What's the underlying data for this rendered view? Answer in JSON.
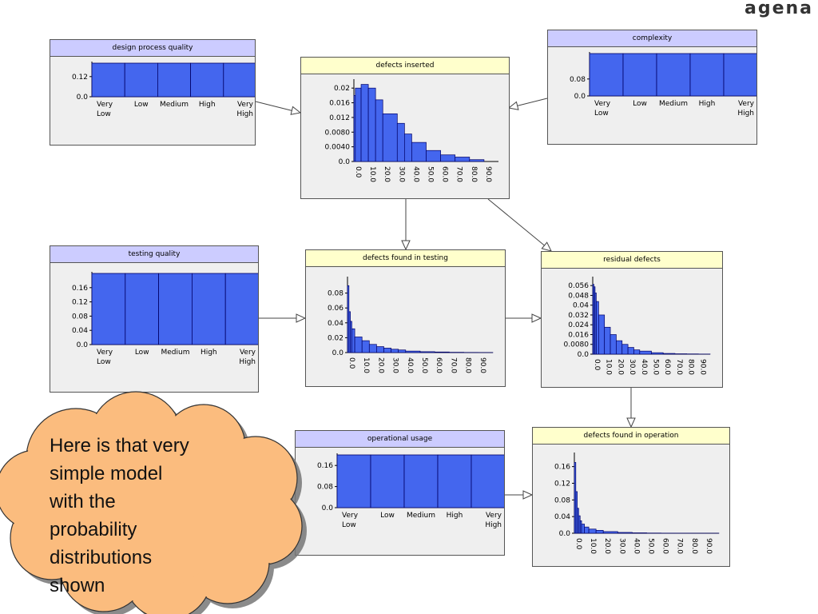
{
  "logo": {
    "text": "agena"
  },
  "note": {
    "lines": [
      "Here is that very",
      "simple model",
      "with the",
      "probability",
      "distributions",
      "shown"
    ],
    "fill": "#fbbc7e",
    "stroke": "#333333"
  },
  "colors": {
    "bar": "#4466ee",
    "bar_stroke": "#000066",
    "arrow": "#444444"
  },
  "nodes": [
    {
      "id": "design-process-quality",
      "title": "design process quality",
      "header": "purple",
      "chart_data": {
        "type": "bar",
        "categories": [
          "Very\nLow",
          "Low",
          "Medium",
          "High",
          "Very\nHigh"
        ],
        "values": [
          0.2,
          0.2,
          0.2,
          0.2,
          0.2
        ],
        "yticks": [
          "0.12",
          "0.0"
        ],
        "ylim": [
          0,
          0.2
        ]
      }
    },
    {
      "id": "complexity",
      "title": "complexity",
      "header": "purple",
      "chart_data": {
        "type": "bar",
        "categories": [
          "Very\nLow",
          "Low",
          "Medium",
          "High",
          "Very\nHigh"
        ],
        "values": [
          0.2,
          0.2,
          0.2,
          0.2,
          0.2
        ],
        "yticks": [
          "0.08",
          "0.0"
        ],
        "ylim": [
          0,
          0.2
        ]
      }
    },
    {
      "id": "testing-quality",
      "title": "testing quality",
      "header": "purple",
      "chart_data": {
        "type": "bar",
        "categories": [
          "Very\nLow",
          "Low",
          "Medium",
          "High",
          "Very\nHigh"
        ],
        "values": [
          0.2,
          0.2,
          0.2,
          0.2,
          0.2
        ],
        "yticks": [
          "0.16",
          "0.12",
          "0.08",
          "0.04",
          "0.0"
        ],
        "ylim": [
          0,
          0.2
        ]
      }
    },
    {
      "id": "operational-usage",
      "title": "operational usage",
      "header": "purple",
      "chart_data": {
        "type": "bar",
        "categories": [
          "Very\nLow",
          "Low",
          "Medium",
          "High",
          "Very\nHigh"
        ],
        "values": [
          0.2,
          0.2,
          0.2,
          0.2,
          0.2
        ],
        "yticks": [
          "0.16",
          "0.08",
          "0.0"
        ],
        "ylim": [
          0,
          0.2
        ]
      }
    },
    {
      "id": "defects-inserted",
      "title": "defects inserted",
      "header": "yellow",
      "chart_data": {
        "type": "histogram",
        "bins": [
          0,
          1,
          5,
          10,
          15,
          20,
          30,
          35,
          40,
          50,
          60,
          70,
          80,
          90,
          100
        ],
        "values": [
          0.018,
          0.02,
          0.021,
          0.02,
          0.0168,
          0.013,
          0.0104,
          0.0075,
          0.0052,
          0.003,
          0.0018,
          0.0012,
          0.0005,
          0
        ],
        "yticks": [
          "0.02",
          "0.016",
          "0.012",
          "0.0080",
          "0.0040",
          "0.0"
        ],
        "xticks": [
          "0.0",
          "10.0",
          "20.0",
          "30.0",
          "40.0",
          "50.0",
          "60.0",
          "70.0",
          "80.0",
          "90.0"
        ],
        "ylim": [
          0,
          0.022
        ]
      }
    },
    {
      "id": "defects-found-in-testing",
      "title": "defects found in testing",
      "header": "yellow",
      "chart_data": {
        "type": "histogram",
        "bins": [
          0,
          1,
          2,
          3,
          5,
          10,
          15,
          20,
          25,
          30,
          35,
          40,
          50,
          60,
          70,
          80,
          90,
          100
        ],
        "values": [
          0.09,
          0.055,
          0.042,
          0.032,
          0.021,
          0.016,
          0.011,
          0.008,
          0.006,
          0.0045,
          0.0035,
          0.002,
          0.0012,
          0.0008,
          0.0004,
          0.0002,
          0.0001
        ],
        "yticks": [
          "0.08",
          "0.06",
          "0.04",
          "0.02",
          "0.0"
        ],
        "xticks": [
          "0.0",
          "10.0",
          "20.0",
          "30.0",
          "40.0",
          "50.0",
          "60.0",
          "70.0",
          "80.0",
          "90.0"
        ],
        "ylim": [
          0,
          0.1
        ]
      }
    },
    {
      "id": "residual-defects",
      "title": "residual defects",
      "header": "yellow",
      "chart_data": {
        "type": "histogram",
        "bins": [
          0,
          1,
          2,
          3,
          5,
          10,
          15,
          20,
          25,
          30,
          35,
          40,
          50,
          60,
          70,
          80,
          90,
          100
        ],
        "values": [
          0.057,
          0.055,
          0.05,
          0.043,
          0.032,
          0.022,
          0.016,
          0.011,
          0.008,
          0.0055,
          0.0035,
          0.0025,
          0.0012,
          0.0006,
          0.0003,
          0.0002,
          0.0001
        ],
        "yticks": [
          "0.056",
          "0.048",
          "0.04",
          "0.032",
          "0.024",
          "0.016",
          "0.0080",
          "0.0"
        ],
        "xticks": [
          "0.0",
          "10.0",
          "20.0",
          "30.0",
          "40.0",
          "50.0",
          "60.0",
          "70.0",
          "80.0",
          "90.0"
        ],
        "ylim": [
          0,
          0.062
        ]
      }
    },
    {
      "id": "defects-found-in-operation",
      "title": "defects found in operation",
      "header": "yellow",
      "chart_data": {
        "type": "histogram",
        "bins": [
          0,
          1,
          2,
          3,
          4,
          5,
          7,
          10,
          15,
          20,
          30,
          40,
          50,
          60,
          70,
          80,
          90,
          100
        ],
        "values": [
          0.17,
          0.1,
          0.06,
          0.042,
          0.03,
          0.022,
          0.015,
          0.01,
          0.007,
          0.004,
          0.002,
          0.001,
          0.0005,
          0.0003,
          0.0002,
          0.0001,
          0.0001
        ],
        "yticks": [
          "0.16",
          "0.12",
          "0.08",
          "0.04",
          "0.0"
        ],
        "xticks": [
          "0.0",
          "10.0",
          "20.0",
          "30.0",
          "40.0",
          "50.0",
          "60.0",
          "70.0",
          "80.0",
          "90.0"
        ],
        "ylim": [
          0,
          0.19
        ]
      }
    }
  ],
  "edges": [
    [
      "design-process-quality",
      "defects-inserted"
    ],
    [
      "complexity",
      "defects-inserted"
    ],
    [
      "defects-inserted",
      "defects-found-in-testing"
    ],
    [
      "defects-inserted",
      "residual-defects"
    ],
    [
      "testing-quality",
      "defects-found-in-testing"
    ],
    [
      "defects-found-in-testing",
      "residual-defects"
    ],
    [
      "residual-defects",
      "defects-found-in-operation"
    ],
    [
      "operational-usage",
      "defects-found-in-operation"
    ]
  ]
}
